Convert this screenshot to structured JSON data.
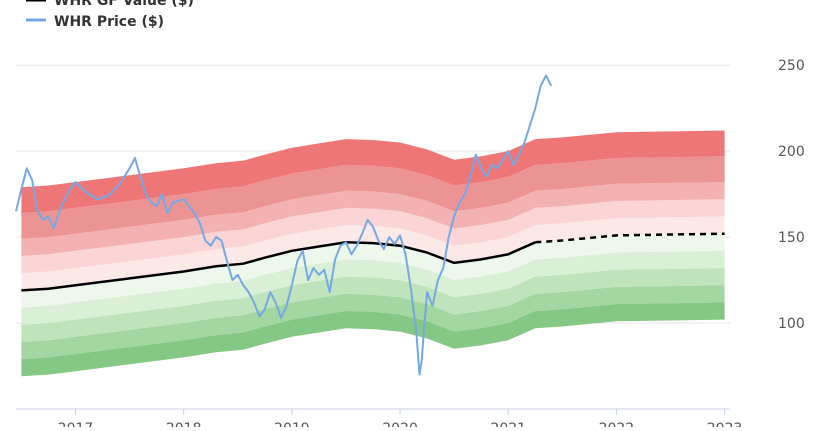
{
  "chart_data": {
    "type": "area",
    "title": "",
    "xlabel": "",
    "ylabel": "",
    "xlim": [
      2016.45,
      2023.05
    ],
    "ylim": [
      50,
      260
    ],
    "yticks": [
      100,
      150,
      200,
      250
    ],
    "xticks": [
      "2017",
      "2018",
      "2019",
      "2020",
      "2021",
      "2022",
      "2023"
    ],
    "grid": true,
    "legend_position": "top-left",
    "legend": [
      {
        "label": "WHR GF Value ($)",
        "color": "#000000"
      },
      {
        "label": "WHR Price ($)",
        "color": "#74a9e4"
      }
    ],
    "gf_value": {
      "name": "WHR GF Value ($)",
      "x": [
        2016.5,
        2016.75,
        2017.0,
        2017.5,
        2018.0,
        2018.3,
        2018.55,
        2018.75,
        2019.0,
        2019.25,
        2019.5,
        2019.75,
        2020.0,
        2020.25,
        2020.5,
        2020.75,
        2021.0,
        2021.25,
        2021.5,
        2022.0,
        2022.5,
        2023.0
      ],
      "y": [
        119,
        120,
        122,
        126,
        130,
        133,
        134.5,
        138,
        142,
        144.5,
        147,
        146.5,
        145,
        141,
        135,
        137,
        140,
        147,
        148,
        151,
        151.5,
        152
      ],
      "projected_from": 2021.25
    },
    "bands": {
      "upper_offsets": [
        10,
        20,
        30,
        45,
        60
      ],
      "lower_offsets": [
        -10,
        -20,
        -30,
        -40,
        -50
      ],
      "upper_colors": [
        "#fde8e8",
        "#fbd5d6",
        "#f3b1b2",
        "#ec9394",
        "#ef7676"
      ],
      "lower_colors": [
        "#eef7ec",
        "#d9efd6",
        "#bfe3bb",
        "#a3d6a0",
        "#85c784"
      ]
    },
    "price": {
      "name": "WHR Price ($)",
      "x": [
        2016.45,
        2016.5,
        2016.55,
        2016.6,
        2016.65,
        2016.7,
        2016.75,
        2016.8,
        2016.85,
        2016.9,
        2016.95,
        2017.0,
        2017.1,
        2017.2,
        2017.3,
        2017.4,
        2017.5,
        2017.55,
        2017.6,
        2017.65,
        2017.7,
        2017.75,
        2017.8,
        2017.85,
        2017.9,
        2018.0,
        2018.1,
        2018.15,
        2018.2,
        2018.25,
        2018.3,
        2018.35,
        2018.4,
        2018.45,
        2018.5,
        2018.55,
        2018.6,
        2018.65,
        2018.7,
        2018.75,
        2018.8,
        2018.85,
        2018.9,
        2018.95,
        2019.0,
        2019.05,
        2019.1,
        2019.15,
        2019.2,
        2019.25,
        2019.3,
        2019.35,
        2019.4,
        2019.45,
        2019.5,
        2019.55,
        2019.6,
        2019.65,
        2019.7,
        2019.75,
        2019.8,
        2019.85,
        2019.9,
        2019.95,
        2020.0,
        2020.05,
        2020.1,
        2020.15,
        2020.18,
        2020.2,
        2020.22,
        2020.25,
        2020.3,
        2020.35,
        2020.4,
        2020.45,
        2020.5,
        2020.55,
        2020.6,
        2020.65,
        2020.7,
        2020.75,
        2020.8,
        2020.85,
        2020.9,
        2020.95,
        2021.0,
        2021.05,
        2021.1,
        2021.15,
        2021.2,
        2021.25,
        2021.3,
        2021.35,
        2021.38,
        2021.4
      ],
      "y": [
        165,
        178,
        190,
        183,
        165,
        160,
        162,
        155,
        165,
        172,
        178,
        182,
        176,
        172,
        174,
        180,
        190,
        196,
        185,
        175,
        170,
        168,
        175,
        164,
        170,
        172,
        164,
        158,
        148,
        145,
        150,
        148,
        136,
        125,
        128,
        122,
        118,
        112,
        104,
        108,
        118,
        112,
        103,
        110,
        122,
        136,
        142,
        125,
        132,
        128,
        131,
        118,
        137,
        145,
        147,
        140,
        145,
        152,
        160,
        156,
        148,
        143,
        150,
        146,
        151,
        140,
        120,
        95,
        70,
        78,
        95,
        118,
        110,
        125,
        132,
        150,
        162,
        170,
        175,
        185,
        198,
        190,
        185,
        192,
        190,
        195,
        200,
        192,
        198,
        205,
        215,
        225,
        238,
        244,
        240,
        238
      ]
    }
  }
}
